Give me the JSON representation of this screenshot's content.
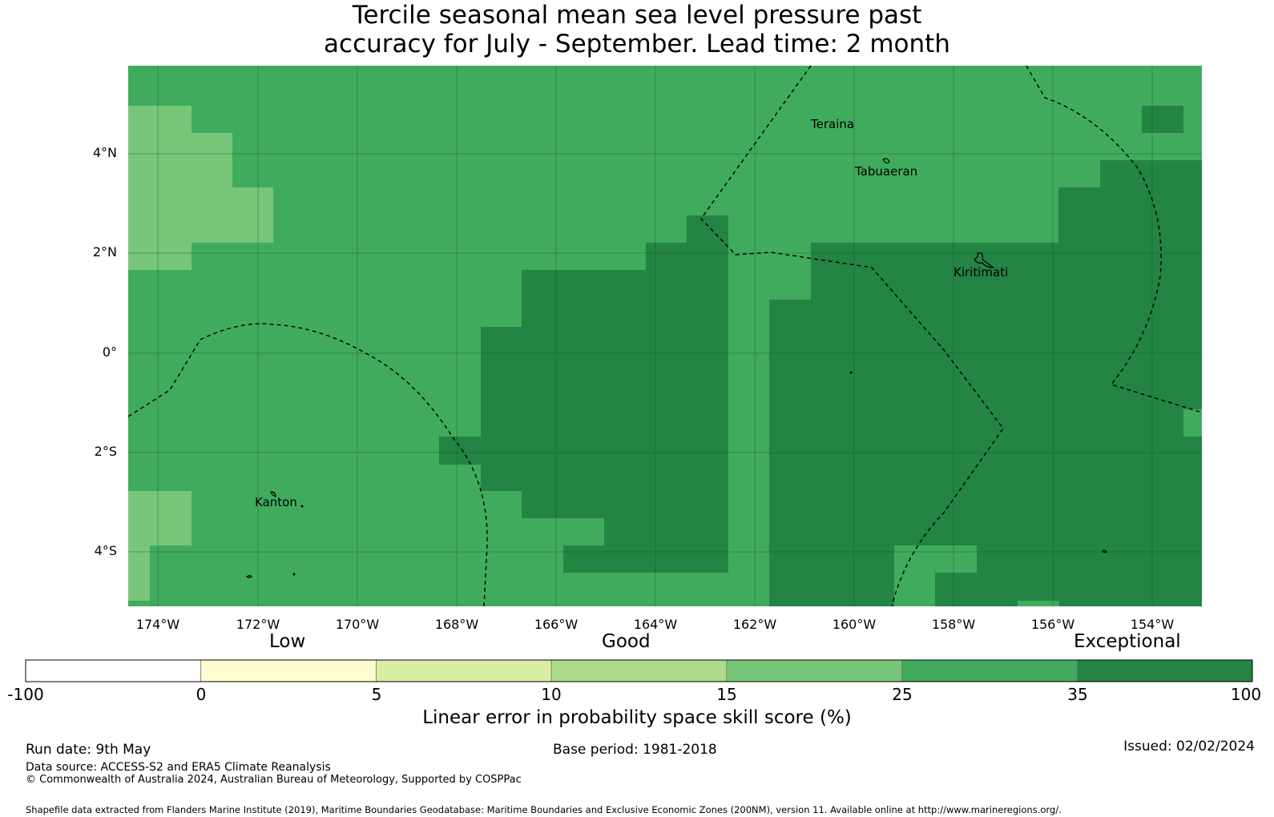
{
  "title": {
    "line1": "Tercile seasonal mean sea level pressure past",
    "line2": "accuracy for July - September. Lead time: 2 month"
  },
  "map": {
    "lat_labels": [
      "4°N",
      "2°N",
      "0°",
      "2°S",
      "4°S"
    ],
    "lon_labels": [
      "174°W",
      "172°W",
      "170°W",
      "168°W",
      "166°W",
      "164°W",
      "162°W",
      "160°W",
      "158°W",
      "156°W",
      "154°W"
    ],
    "places": [
      "Teraina",
      "Tabuaeran",
      "Kiritimati",
      "Kanton"
    ]
  },
  "colorbar": {
    "categories": [
      "Low",
      "Good",
      "Exceptional"
    ],
    "tick_labels": [
      "-100",
      "0",
      "5",
      "10",
      "15",
      "25",
      "35",
      "100"
    ],
    "colors": [
      "#ffffff",
      "#fffdcf",
      "#daeea3",
      "#acdb8c",
      "#78c679",
      "#41ab5d",
      "#238443"
    ],
    "label": "Linear error in probability space skill score (%)"
  },
  "footer": {
    "run_date": "Run date: 9th May",
    "base_period": "Base period: 1981-2018",
    "issued": "Issued: 02/02/2024",
    "data_source": "Data source: ACCESS-S2 and ERA5 Climate Reanalysis",
    "copyright": "© Commonwealth of Australia 2024, Australian Bureau of Meteorology, Supported by COSPPac",
    "shapefile": "Shapefile data extracted from Flanders Marine Institute (2019), Maritime Boundaries Geodatabase: Maritime Boundaries and Exclusive Economic Zones (200NM), version 11. Available online at http://www.marineregions.org/."
  }
}
